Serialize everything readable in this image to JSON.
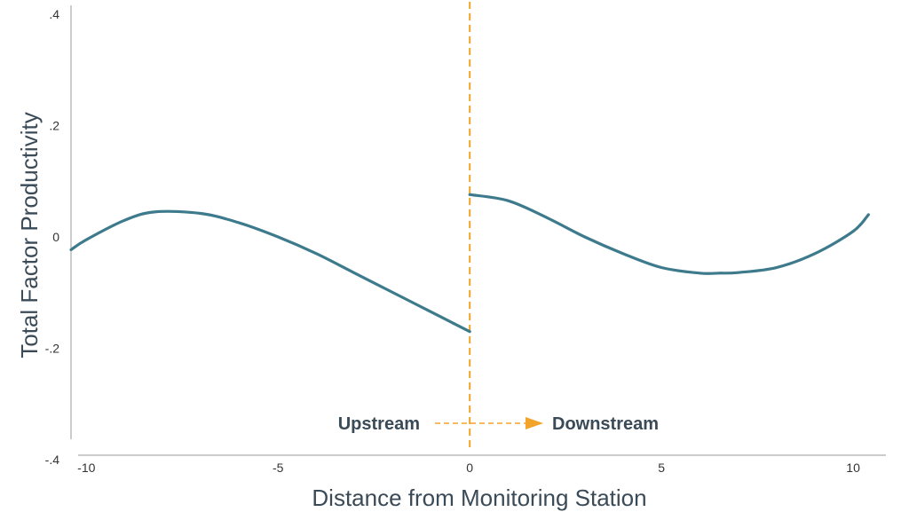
{
  "chart_data": {
    "type": "line",
    "xlabel": "Distance from Monitoring Station",
    "ylabel": "Total Factor Productivity",
    "xlim": [
      -10.4,
      10.6
    ],
    "ylim": [
      -0.4,
      0.4
    ],
    "xticks": [
      {
        "value": -10,
        "label": "-10"
      },
      {
        "value": -5,
        "label": "-5"
      },
      {
        "value": 0,
        "label": "0"
      },
      {
        "value": 5,
        "label": "5"
      },
      {
        "value": 10,
        "label": "10"
      }
    ],
    "yticks": [
      {
        "value": 0.4,
        "label": ".4"
      },
      {
        "value": 0.2,
        "label": ".2"
      },
      {
        "value": 0,
        "label": "0"
      },
      {
        "value": -0.2,
        "label": "-.2"
      },
      {
        "value": -0.4,
        "label": "-.4"
      }
    ],
    "grid": false,
    "line_color": "#3d7a8c",
    "threshold": {
      "x": 0,
      "color": "#f2a32a",
      "style": "dashed"
    },
    "series": [
      {
        "segment": "upstream",
        "x": [
          -10.4,
          -10,
          -9,
          -8.2,
          -7,
          -6,
          -5,
          -4,
          -3,
          -2,
          -1,
          0
        ],
        "y": [
          -0.023,
          -0.005,
          0.03,
          0.045,
          0.042,
          0.025,
          0.0,
          -0.03,
          -0.065,
          -0.1,
          -0.135,
          -0.17
        ]
      },
      {
        "segment": "downstream",
        "x": [
          0,
          1,
          2,
          3,
          4,
          5,
          6,
          6.5,
          7,
          8,
          9,
          10,
          10.4
        ],
        "y": [
          0.076,
          0.065,
          0.035,
          0.0,
          -0.03,
          -0.055,
          -0.065,
          -0.065,
          -0.064,
          -0.055,
          -0.03,
          0.01,
          0.04
        ]
      }
    ],
    "annotations": {
      "left": "Upstream",
      "right": "Downstream",
      "arrow_color": "#f2a32a"
    }
  }
}
